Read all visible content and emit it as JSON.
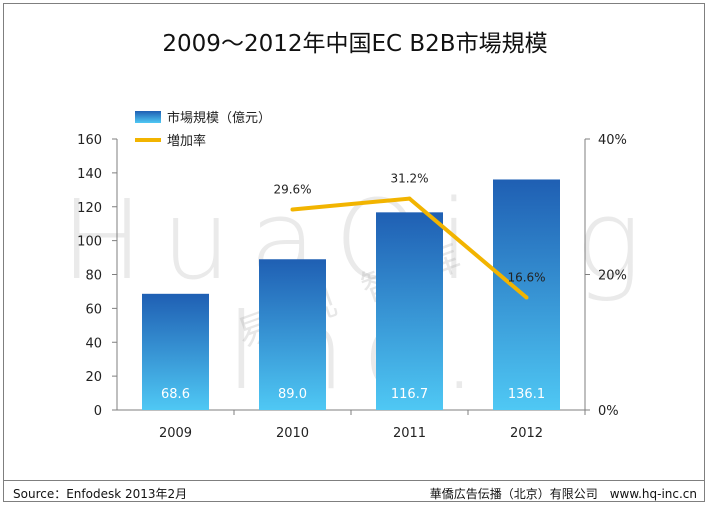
{
  "title": "2009～2012年中国EC B2B市場規模",
  "watermark": "HuaQing Inc.",
  "watermark_cn": "易观智库",
  "footer": {
    "source": "Source：Enfodesk 2013年2月",
    "publisher": "華僑広告伝播（北京）有限公司　www.hq-inc.cn"
  },
  "colors": {
    "bar_top": "#1f5fb3",
    "bar_bottom": "#4fc8f4",
    "line": "#f2b400",
    "axis": "#7f7f7f",
    "text": "#222222"
  },
  "chart_data": {
    "type": "bar",
    "categories": [
      "2009",
      "2010",
      "2011",
      "2012"
    ],
    "series": [
      {
        "name": "市場規模（億元）",
        "type": "bar",
        "axis": "left",
        "values": [
          68.6,
          89.0,
          116.7,
          136.1
        ],
        "labels": [
          "68.6",
          "89.0",
          "116.7",
          "136.1"
        ]
      },
      {
        "name": "増加率",
        "type": "line",
        "axis": "right",
        "values": [
          null,
          29.6,
          31.2,
          16.6
        ],
        "labels": [
          "",
          "29.6%",
          "31.2%",
          "16.6%"
        ]
      }
    ],
    "y_left": {
      "min": 0,
      "max": 160,
      "ticks": [
        "0",
        "20",
        "40",
        "60",
        "80",
        "100",
        "120",
        "140",
        "160"
      ]
    },
    "y_right": {
      "min": 0,
      "max": 40,
      "ticks": [
        "0%",
        "20%",
        "40%"
      ]
    },
    "legend": "top-left",
    "grid": false
  }
}
